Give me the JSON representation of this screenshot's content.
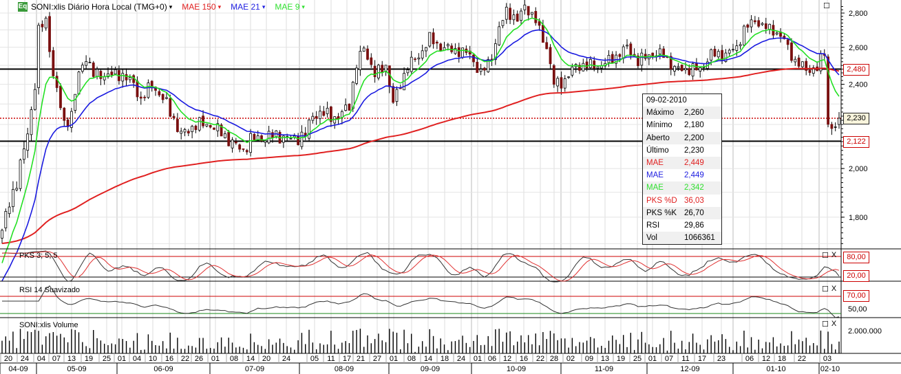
{
  "legend": {
    "badge": "Eq",
    "symbol": "SONI:xlis Diário Hora Local (TMG+0)",
    "ma150": "MAE 150",
    "ma21": "MAE 21",
    "ma9": "MAE 9"
  },
  "tooltip": {
    "date": "09-02-2010",
    "rows": [
      {
        "k": "Máximo",
        "v": "2,260",
        "c": "#000"
      },
      {
        "k": "Mínimo",
        "v": "2,180",
        "c": "#000"
      },
      {
        "k": "Aberto",
        "v": "2,200",
        "c": "#000"
      },
      {
        "k": "Último",
        "v": "2,230",
        "c": "#000"
      },
      {
        "k": "MAE",
        "v": "2,449",
        "c": "#e02020"
      },
      {
        "k": "MAE",
        "v": "2,449",
        "c": "#2020e0"
      },
      {
        "k": "MAE",
        "v": "2,342",
        "c": "#30e030"
      },
      {
        "k": "PKS %D",
        "v": "36,03",
        "c": "#e02020"
      },
      {
        "k": "PKS %K",
        "v": "26,70",
        "c": "#000"
      },
      {
        "k": "RSI",
        "v": "29,86",
        "c": "#000"
      },
      {
        "k": "Vol",
        "v": "1066361",
        "c": "#000"
      }
    ]
  },
  "panels": {
    "pks": "PKS 3; 5; 5",
    "rsi": "RSI 14 Suavizado",
    "volume": "SONI:xlis Volume"
  },
  "price_axis": {
    "ticks": [
      "2,800",
      "2,600",
      "2,400",
      "2,000",
      "1,800"
    ],
    "tick_values": [
      2800,
      2600,
      2400,
      2000,
      1800
    ],
    "last_label": "2,230",
    "upper_label": "2,480",
    "lower_label": "2,122"
  },
  "levels": {
    "upper": 2480,
    "lower": 2122,
    "last": 2230
  },
  "pks_axis": {
    "hi": "80,00",
    "lo": "20,00"
  },
  "rsi_axis": {
    "hi": "70,00",
    "mid": "50,00"
  },
  "vol_axis": {
    "label": "2.000.000"
  },
  "colors": {
    "ma150": "#e02020",
    "ma21": "#1a1ae0",
    "ma9": "#22e022",
    "down": "#7a1010"
  },
  "chart_data": {
    "type": "candlestick",
    "scale": "log",
    "ylim": [
      1640,
      2880
    ],
    "bars": 230,
    "close_keypoints": [
      [
        0,
        1750
      ],
      [
        4,
        1950
      ],
      [
        7,
        2150
      ],
      [
        9,
        2400
      ],
      [
        10,
        2700
      ],
      [
        12,
        2750
      ],
      [
        14,
        2450
      ],
      [
        17,
        2200
      ],
      [
        19,
        2250
      ],
      [
        21,
        2450
      ],
      [
        23,
        2550
      ],
      [
        25,
        2450
      ],
      [
        28,
        2450
      ],
      [
        33,
        2450
      ],
      [
        36,
        2400
      ],
      [
        38,
        2320
      ],
      [
        41,
        2400
      ],
      [
        45,
        2300
      ],
      [
        49,
        2150
      ],
      [
        53,
        2200
      ],
      [
        57,
        2200
      ],
      [
        60,
        2160
      ],
      [
        64,
        2100
      ],
      [
        66,
        2080
      ],
      [
        68,
        2130
      ],
      [
        72,
        2140
      ],
      [
        75,
        2150
      ],
      [
        79,
        2130
      ],
      [
        83,
        2150
      ],
      [
        85,
        2250
      ],
      [
        89,
        2250
      ],
      [
        92,
        2230
      ],
      [
        95,
        2300
      ],
      [
        97,
        2500
      ],
      [
        99,
        2600
      ],
      [
        102,
        2450
      ],
      [
        105,
        2500
      ],
      [
        107,
        2300
      ],
      [
        109,
        2400
      ],
      [
        111,
        2500
      ],
      [
        114,
        2550
      ],
      [
        117,
        2650
      ],
      [
        120,
        2600
      ],
      [
        125,
        2580
      ],
      [
        128,
        2560
      ],
      [
        131,
        2450
      ],
      [
        134,
        2550
      ],
      [
        136,
        2700
      ],
      [
        138,
        2820
      ],
      [
        141,
        2750
      ],
      [
        143,
        2850
      ],
      [
        146,
        2750
      ],
      [
        149,
        2600
      ],
      [
        151,
        2400
      ],
      [
        154,
        2420
      ],
      [
        157,
        2500
      ],
      [
        160,
        2500
      ],
      [
        164,
        2500
      ],
      [
        168,
        2550
      ],
      [
        171,
        2600
      ],
      [
        174,
        2520
      ],
      [
        177,
        2560
      ],
      [
        181,
        2560
      ],
      [
        184,
        2480
      ],
      [
        187,
        2480
      ],
      [
        191,
        2480
      ],
      [
        194,
        2560
      ],
      [
        198,
        2560
      ],
      [
        201,
        2600
      ],
      [
        203,
        2700
      ],
      [
        206,
        2760
      ],
      [
        208,
        2720
      ],
      [
        211,
        2700
      ],
      [
        214,
        2640
      ],
      [
        217,
        2520
      ],
      [
        220,
        2480
      ],
      [
        223,
        2480
      ],
      [
        225,
        2580
      ],
      [
        226,
        2200
      ],
      [
        228,
        2180
      ],
      [
        229,
        2230
      ]
    ],
    "date_labels": [
      "20",
      "24",
      "04",
      "07",
      "13",
      "19",
      "25",
      "01",
      "04",
      "10",
      "16",
      "22",
      "26",
      "01",
      "08",
      "14",
      "20",
      "24",
      "05",
      "11",
      "17",
      "21",
      "27",
      "01",
      "08",
      "14",
      "18",
      "24",
      "01",
      "06",
      "12",
      "16",
      "22",
      "28",
      "02",
      "09",
      "13",
      "19",
      "25",
      "01",
      "07",
      "11",
      "17",
      "23",
      "06",
      "12",
      "18",
      "22",
      "03"
    ],
    "month_labels": [
      "04-09",
      "05-09",
      "06-09",
      "07-09",
      "08-09",
      "09-09",
      "10-09",
      "11-09",
      "12-09",
      "01-10",
      "02-10"
    ],
    "indicators": {
      "ma_periods": [
        150,
        21,
        9
      ],
      "pks": [
        3,
        5,
        5
      ],
      "pks_levels": [
        80,
        20
      ],
      "rsi_period": 14,
      "rsi_levels": [
        70,
        30
      ]
    }
  }
}
